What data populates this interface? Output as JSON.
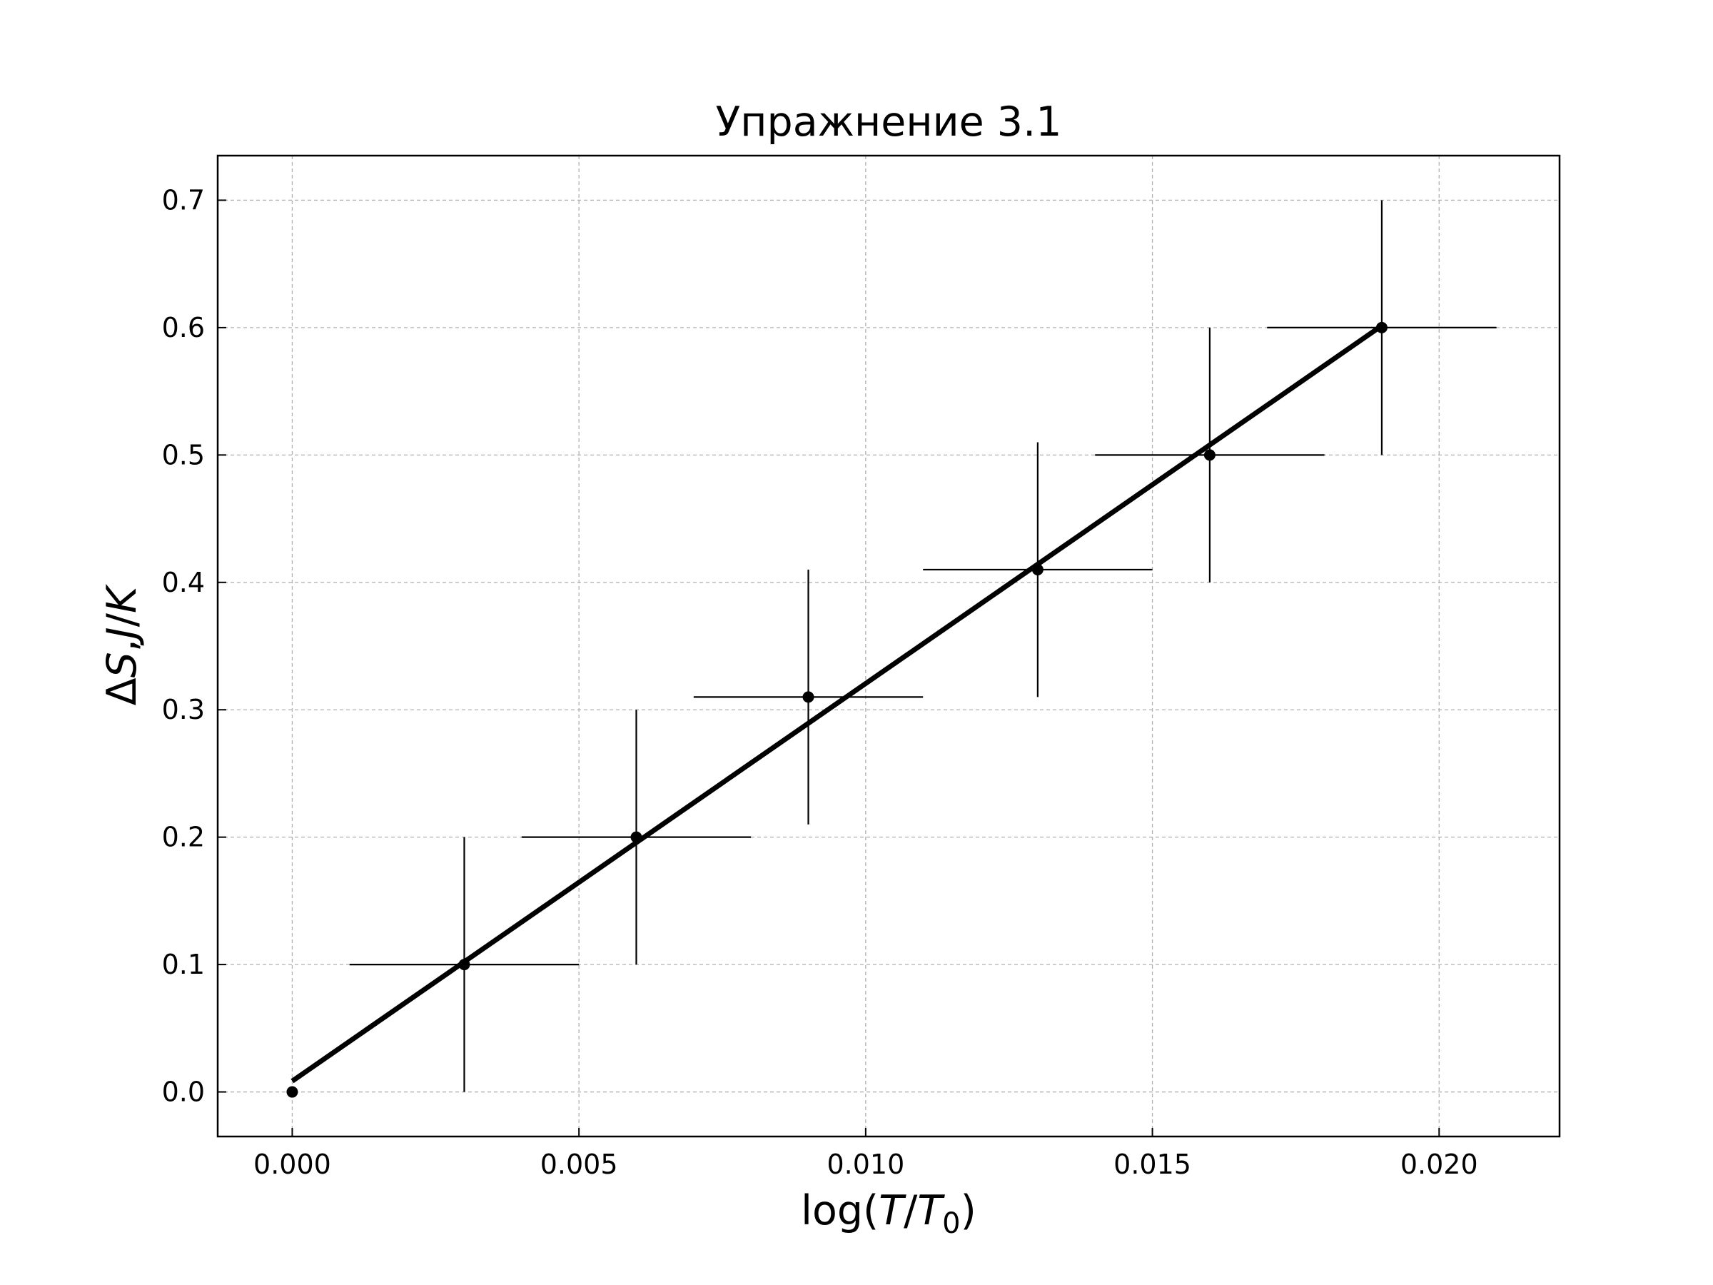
{
  "chart_data": {
    "type": "scatter",
    "title": "Упражнение 3.1",
    "xlabel": "log(T/T0)",
    "ylabel": "ΔS, J/K",
    "xlim": [
      -0.0013,
      0.0221
    ],
    "ylim": [
      -0.035,
      0.735
    ],
    "grid": true,
    "xticks": [
      0.0,
      0.005,
      0.01,
      0.015,
      0.02
    ],
    "xtick_labels": [
      "0.000",
      "0.005",
      "0.010",
      "0.015",
      "0.020"
    ],
    "yticks": [
      0.0,
      0.1,
      0.2,
      0.3,
      0.4,
      0.5,
      0.6,
      0.7
    ],
    "ytick_labels": [
      "0.0",
      "0.1",
      "0.2",
      "0.3",
      "0.4",
      "0.5",
      "0.6",
      "0.7"
    ],
    "points": [
      {
        "x": 0.0,
        "y": 0.0,
        "xerr": 0.0,
        "yerr": 0.0
      },
      {
        "x": 0.003,
        "y": 0.1,
        "xerr": 0.002,
        "yerr": 0.1
      },
      {
        "x": 0.006,
        "y": 0.2,
        "xerr": 0.002,
        "yerr": 0.1
      },
      {
        "x": 0.009,
        "y": 0.31,
        "xerr": 0.002,
        "yerr": 0.1
      },
      {
        "x": 0.013,
        "y": 0.41,
        "xerr": 0.002,
        "yerr": 0.1
      },
      {
        "x": 0.016,
        "y": 0.5,
        "xerr": 0.002,
        "yerr": 0.1
      },
      {
        "x": 0.019,
        "y": 0.6,
        "xerr": 0.002,
        "yerr": 0.1
      }
    ],
    "fit_line": {
      "x": [
        0.0,
        0.019
      ],
      "y": [
        0.0085,
        0.6015
      ]
    },
    "colors": {
      "points": "#000000",
      "fit": "#000000",
      "grid": "#b0b0b0"
    }
  }
}
